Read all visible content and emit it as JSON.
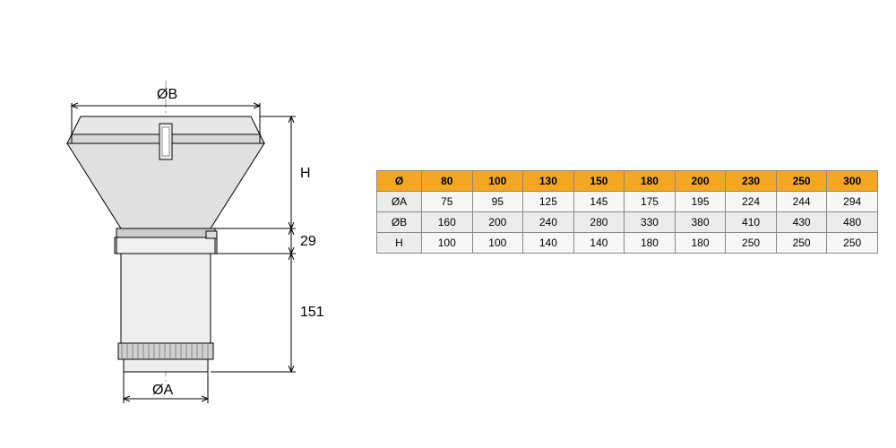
{
  "drawing": {
    "labels": {
      "diaB": "ØB",
      "diaA": "ØA",
      "H": "H",
      "d29": "29",
      "d151": "151"
    },
    "colors": {
      "stroke": "#000000",
      "fill_light": "#f0f0f0",
      "fill_mid": "#d8d8d8",
      "fill_dark": "#b0b0b0",
      "centerline": "#999999"
    }
  },
  "table": {
    "header_label": "Ø",
    "header_bg": "#f5a623",
    "header_alt_bg": "#f5a623",
    "row_bg_even": "#ececec",
    "row_bg_odd": "#f7f7f7",
    "row_header_bg": "#ececec",
    "border_color": "#888888",
    "font_size": 12,
    "columns": [
      "80",
      "100",
      "130",
      "150",
      "180",
      "200",
      "230",
      "250",
      "300"
    ],
    "rows": [
      {
        "label": "ØA",
        "values": [
          "75",
          "95",
          "125",
          "145",
          "175",
          "195",
          "224",
          "244",
          "294"
        ]
      },
      {
        "label": "ØB",
        "values": [
          "160",
          "200",
          "240",
          "280",
          "330",
          "380",
          "410",
          "430",
          "480"
        ]
      },
      {
        "label": "H",
        "values": [
          "100",
          "100",
          "140",
          "140",
          "180",
          "180",
          "250",
          "250",
          "250"
        ]
      }
    ]
  }
}
